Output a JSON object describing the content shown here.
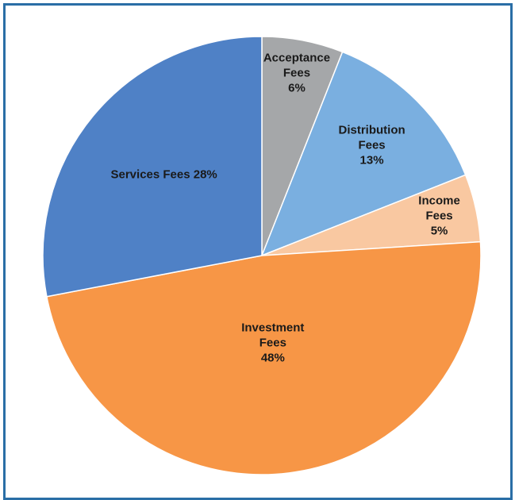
{
  "chart_data": {
    "type": "pie",
    "categories": [
      "Acceptance Fees",
      "Distribution Fees",
      "Income Fees",
      "Investment Fees",
      "Services Fees"
    ],
    "values": [
      6,
      13,
      5,
      48,
      28
    ],
    "value_labels": [
      "6%",
      "13%",
      "5%",
      "48%",
      "28%"
    ],
    "colors": [
      "#a5a7a9",
      "#7aafe0",
      "#f9c8a1",
      "#f79646",
      "#4f81c6"
    ]
  }
}
